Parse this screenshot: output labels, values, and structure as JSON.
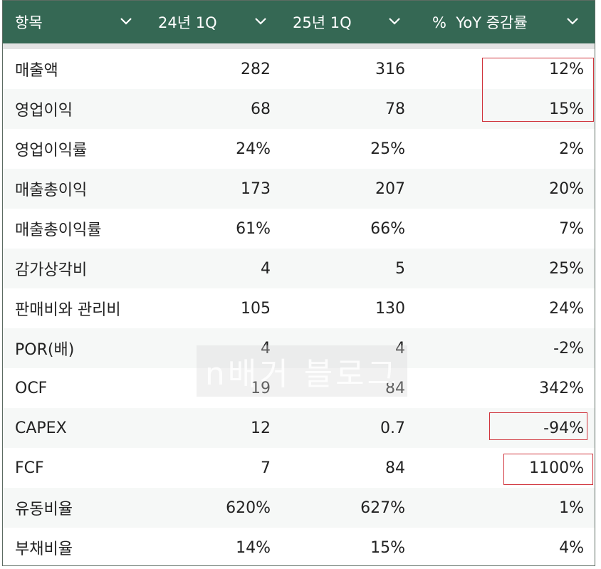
{
  "columns": [
    {
      "label": "항목",
      "has_dropdown": true
    },
    {
      "label": "24년 1Q",
      "has_dropdown": true
    },
    {
      "label": "25년 1Q",
      "has_dropdown": true
    },
    {
      "label": "%  YoY 증감률",
      "has_dropdown": true
    }
  ],
  "rows": [
    {
      "item": "매출액",
      "q24": "282",
      "q25": "316",
      "yoy": "12%"
    },
    {
      "item": "영업이익",
      "q24": "68",
      "q25": "78",
      "yoy": "15%"
    },
    {
      "item": "영업이익률",
      "q24": "24%",
      "q25": "25%",
      "yoy": "2%"
    },
    {
      "item": "매출총이익",
      "q24": "173",
      "q25": "207",
      "yoy": "20%"
    },
    {
      "item": "매출총이익률",
      "q24": "61%",
      "q25": "66%",
      "yoy": "7%"
    },
    {
      "item": "감가상각비",
      "q24": "4",
      "q25": "5",
      "yoy": "25%"
    },
    {
      "item": "판매비와 관리비",
      "q24": "105",
      "q25": "130",
      "yoy": "24%"
    },
    {
      "item": "POR(배)",
      "q24": "4",
      "q25": "4",
      "yoy": "-2%"
    },
    {
      "item": "OCF",
      "q24": "19",
      "q25": "84",
      "yoy": "342%"
    },
    {
      "item": "CAPEX",
      "q24": "12",
      "q25": "0.7",
      "yoy": "-94%"
    },
    {
      "item": "FCF",
      "q24": "7",
      "q25": "84",
      "yoy": "1100%"
    },
    {
      "item": "유동비율",
      "q24": "620%",
      "q25": "627%",
      "yoy": "1%"
    },
    {
      "item": "부채비율",
      "q24": "14%",
      "q25": "15%",
      "yoy": "4%"
    }
  ],
  "watermark": "n배거 블로그",
  "colors": {
    "header_bg": "#356854",
    "header_text": "#ffffff",
    "highlight_box": "#d0343c",
    "alt_row": "#f6f8f7"
  },
  "icons": {
    "dropdown": "chevron-down-icon"
  }
}
